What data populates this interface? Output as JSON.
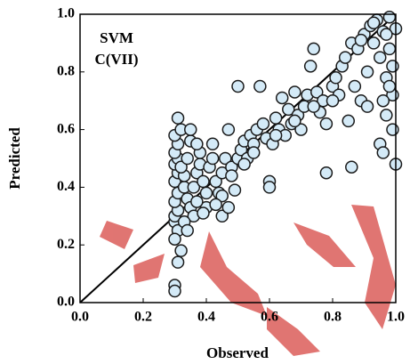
{
  "chart_data": {
    "type": "scatter",
    "annotations": [
      "SVM",
      "C(VII)"
    ],
    "x_label": "Observed",
    "y_label": "Predicted",
    "xlim": [
      0,
      1
    ],
    "ylim": [
      0,
      1
    ],
    "xticks": [
      {
        "value": 0,
        "label": "0.0"
      },
      {
        "value": 0.2,
        "label": "0.2"
      },
      {
        "value": 0.4,
        "label": "0.4"
      },
      {
        "value": 0.6,
        "label": "0.6"
      },
      {
        "value": 0.8,
        "label": "0.8"
      },
      {
        "value": 1,
        "label": "1.0"
      }
    ],
    "yticks": [
      {
        "value": 0,
        "label": "0.0"
      },
      {
        "value": 0.2,
        "label": "0.2"
      },
      {
        "value": 0.4,
        "label": "0.4"
      },
      {
        "value": 0.6,
        "label": "0.6"
      },
      {
        "value": 0.8,
        "label": "0.8"
      },
      {
        "value": 1,
        "label": "1.0"
      }
    ],
    "color": "#d4eaf7",
    "x": [
      0.3,
      0.3,
      0.31,
      0.3,
      0.31,
      0.3,
      0.3,
      0.32,
      0.31,
      0.3,
      0.31,
      0.3,
      0.31,
      0.3,
      0.31,
      0.3,
      0.31,
      0.3,
      0.32,
      0.31,
      0.33,
      0.33,
      0.32,
      0.34,
      0.35,
      0.35,
      0.34,
      0.35,
      0.36,
      0.36,
      0.37,
      0.38,
      0.38,
      0.37,
      0.39,
      0.4,
      0.4,
      0.41,
      0.42,
      0.42,
      0.43,
      0.44,
      0.45,
      0.45,
      0.46,
      0.47,
      0.47,
      0.48,
      0.49,
      0.5,
      0.5,
      0.51,
      0.52,
      0.53,
      0.54,
      0.55,
      0.56,
      0.57,
      0.58,
      0.59,
      0.6,
      0.6,
      0.61,
      0.62,
      0.63,
      0.64,
      0.65,
      0.66,
      0.67,
      0.68,
      0.69,
      0.7,
      0.71,
      0.72,
      0.73,
      0.74,
      0.75,
      0.76,
      0.77,
      0.78,
      0.78,
      0.8,
      0.81,
      0.82,
      0.83,
      0.84,
      0.85,
      0.86,
      0.86,
      0.87,
      0.88,
      0.89,
      0.9,
      0.91,
      0.91,
      0.92,
      0.93,
      0.94,
      0.95,
      0.95,
      0.96,
      0.96,
      0.97,
      0.97,
      0.98,
      0.98,
      0.99,
      0.99,
      1.0,
      1.0,
      0.99,
      0.97,
      0.96,
      0.93,
      0.89,
      0.98,
      0.45,
      0.43,
      0.37,
      0.39,
      0.33,
      0.34,
      0.55,
      0.52,
      0.48,
      0.62,
      0.68,
      0.74,
      0.8
    ],
    "y": [
      0.28,
      0.3,
      0.25,
      0.22,
      0.14,
      0.06,
      0.04,
      0.18,
      0.32,
      0.35,
      0.38,
      0.42,
      0.45,
      0.48,
      0.5,
      0.52,
      0.55,
      0.58,
      0.6,
      0.64,
      0.4,
      0.44,
      0.47,
      0.5,
      0.56,
      0.6,
      0.36,
      0.33,
      0.3,
      0.4,
      0.45,
      0.48,
      0.52,
      0.55,
      0.42,
      0.38,
      0.33,
      0.47,
      0.5,
      0.55,
      0.42,
      0.38,
      0.3,
      0.45,
      0.5,
      0.33,
      0.6,
      0.47,
      0.39,
      0.75,
      0.5,
      0.53,
      0.56,
      0.5,
      0.58,
      0.55,
      0.6,
      0.75,
      0.62,
      0.57,
      0.42,
      0.4,
      0.55,
      0.64,
      0.6,
      0.71,
      0.58,
      0.67,
      0.62,
      0.73,
      0.65,
      0.6,
      0.68,
      0.72,
      0.82,
      0.88,
      0.73,
      0.66,
      0.7,
      0.45,
      0.62,
      0.75,
      0.78,
      0.72,
      0.82,
      0.85,
      0.63,
      0.47,
      0.9,
      0.75,
      0.88,
      0.7,
      0.93,
      0.68,
      0.8,
      0.96,
      0.9,
      0.98,
      0.55,
      0.85,
      0.52,
      0.94,
      0.78,
      0.65,
      0.99,
      0.88,
      0.72,
      0.82,
      0.48,
      0.95,
      0.6,
      0.93,
      0.7,
      0.97,
      0.91,
      0.75,
      0.37,
      0.34,
      0.35,
      0.31,
      0.28,
      0.25,
      0.52,
      0.48,
      0.44,
      0.58,
      0.63,
      0.68,
      0.7
    ]
  }
}
